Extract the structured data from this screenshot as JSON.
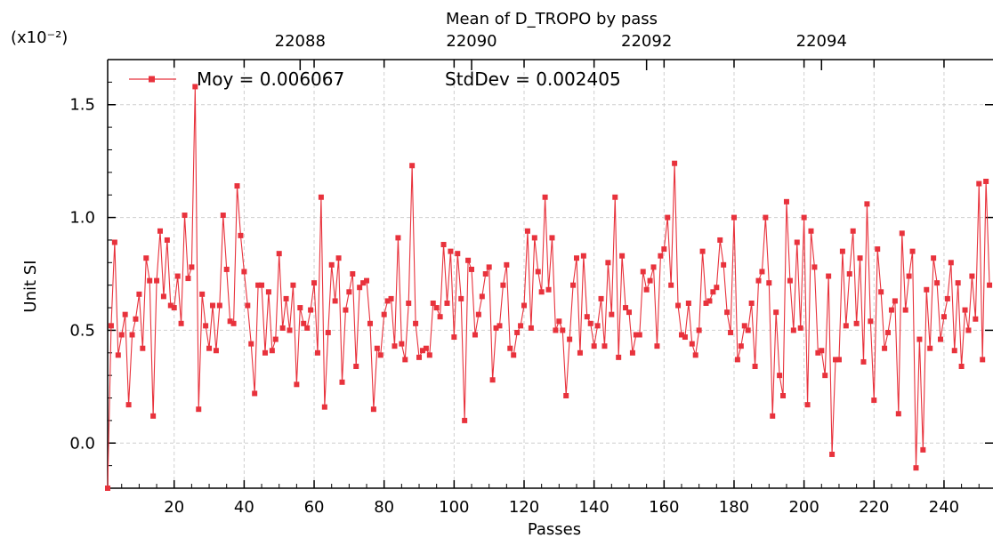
{
  "chart_data": {
    "type": "line",
    "title": "Mean of D_TROPO by pass",
    "xlabel": "Passes",
    "ylabel": "Unit SI",
    "y_multiplier_label": "(x10⁻²)",
    "xlim": [
      1,
      254
    ],
    "ylim": [
      -0.2,
      1.7
    ],
    "x_ticks": [
      20,
      40,
      60,
      80,
      100,
      120,
      140,
      160,
      180,
      200,
      220,
      240
    ],
    "y_ticks": [
      0.0,
      0.5,
      1.0,
      1.5
    ],
    "y_tick_labels": [
      "0.0",
      "0.5",
      "1.0",
      "1.5"
    ],
    "top_axis_ticks": [
      {
        "x": 56,
        "label": "22088"
      },
      {
        "x": 105,
        "label": "22090"
      },
      {
        "x": 155,
        "label": "22092"
      },
      {
        "x": 205,
        "label": "22094"
      }
    ],
    "grid": true,
    "legend": {
      "placement": "top-left"
    },
    "annotations": [
      "Moy = 0.006067",
      "StdDev = 0.002405"
    ],
    "series": [
      {
        "color": "#e8323c",
        "marker": "square",
        "x_start": 1,
        "values": [
          -0.2,
          0.52,
          0.89,
          0.39,
          0.48,
          0.57,
          0.17,
          0.48,
          0.55,
          0.66,
          0.42,
          0.82,
          0.72,
          0.12,
          0.72,
          0.94,
          0.65,
          0.9,
          0.61,
          0.6,
          0.74,
          0.53,
          1.01,
          0.73,
          0.78,
          1.58,
          0.15,
          0.66,
          0.52,
          0.42,
          0.61,
          0.41,
          0.61,
          1.01,
          0.77,
          0.54,
          0.53,
          1.14,
          0.92,
          0.76,
          0.61,
          0.44,
          0.22,
          0.7,
          0.7,
          0.4,
          0.67,
          0.41,
          0.46,
          0.84,
          0.51,
          0.64,
          0.5,
          0.7,
          0.26,
          0.6,
          0.53,
          0.51,
          0.59,
          0.71,
          0.4,
          1.09,
          0.16,
          0.49,
          0.79,
          0.63,
          0.82,
          0.27,
          0.59,
          0.67,
          0.75,
          0.34,
          0.69,
          0.71,
          0.72,
          0.53,
          0.15,
          0.42,
          0.39,
          0.57,
          0.63,
          0.64,
          0.43,
          0.91,
          0.44,
          0.37,
          0.62,
          1.23,
          0.53,
          0.38,
          0.41,
          0.42,
          0.39,
          0.62,
          0.6,
          0.56,
          0.88,
          0.62,
          0.85,
          0.47,
          0.84,
          0.64,
          0.1,
          0.81,
          0.77,
          0.48,
          0.57,
          0.65,
          0.75,
          0.78,
          0.28,
          0.51,
          0.52,
          0.7,
          0.79,
          0.42,
          0.39,
          0.49,
          0.52,
          0.61,
          0.94,
          0.51,
          0.91,
          0.76,
          0.67,
          1.09,
          0.68,
          0.91,
          0.5,
          0.54,
          0.5,
          0.21,
          0.46,
          0.7,
          0.82,
          0.4,
          0.83,
          0.56,
          0.53,
          0.43,
          0.52,
          0.64,
          0.43,
          0.8,
          0.57,
          1.09,
          0.38,
          0.83,
          0.6,
          0.58,
          0.4,
          0.48,
          0.48,
          0.76,
          0.68,
          0.72,
          0.78,
          0.43,
          0.83,
          0.86,
          1.0,
          0.7,
          1.24,
          0.61,
          0.48,
          0.47,
          0.62,
          0.44,
          0.39,
          0.5,
          0.85,
          0.62,
          0.63,
          0.67,
          0.69,
          0.9,
          0.79,
          0.58,
          0.49,
          1.0,
          0.37,
          0.43,
          0.52,
          0.5,
          0.62,
          0.34,
          0.72,
          0.76,
          1.0,
          0.71,
          0.12,
          0.58,
          0.3,
          0.21,
          1.07,
          0.72,
          0.5,
          0.89,
          0.51,
          1.0,
          0.17,
          0.94,
          0.78,
          0.4,
          0.41,
          0.3,
          0.74,
          -0.05,
          0.37,
          0.37,
          0.85,
          0.52,
          0.75,
          0.94,
          0.53,
          0.82,
          0.36,
          1.06,
          0.54,
          0.19,
          0.86,
          0.67,
          0.42,
          0.49,
          0.59,
          0.63,
          0.13,
          0.93,
          0.59,
          0.74,
          0.85,
          -0.11,
          0.46,
          -0.03,
          0.68,
          0.42,
          0.82,
          0.71,
          0.46,
          0.56,
          0.64,
          0.8,
          0.41,
          0.71,
          0.34,
          0.59,
          0.5,
          0.74,
          0.55,
          1.15,
          0.37,
          1.16,
          0.7
        ]
      }
    ]
  }
}
